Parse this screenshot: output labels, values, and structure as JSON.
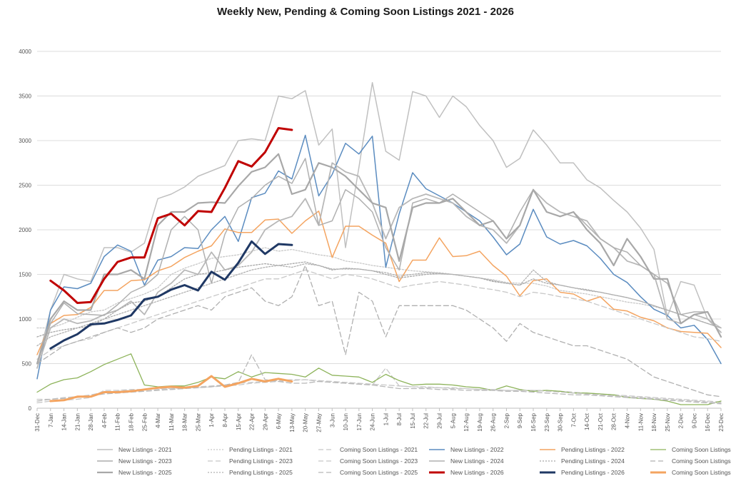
{
  "chart_data": {
    "type": "line",
    "title": "Weekly New, Pending & Coming Soon Listings 2021 - 2026",
    "xlabel": "",
    "ylabel": "",
    "ylim": [
      0,
      4000
    ],
    "yticks": [
      0,
      500,
      1000,
      1500,
      2000,
      2500,
      3000,
      3500,
      4000
    ],
    "grid": true,
    "legend_position": "bottom",
    "categories": [
      "31-Dec",
      "7-Jan",
      "14-Jan",
      "21-Jan",
      "28-Jan",
      "4-Feb",
      "11-Feb",
      "18-Feb",
      "25-Feb",
      "4-Mar",
      "11-Mar",
      "18-Mar",
      "25-Mar",
      "1-Apr",
      "8-Apr",
      "15-Apr",
      "22-Apr",
      "29-Apr",
      "6-May",
      "13-May",
      "20-May",
      "27-May",
      "3-Jun",
      "10-Jun",
      "17-Jun",
      "24-Jun",
      "1-Jul",
      "8-Jul",
      "15-Jul",
      "22-Jul",
      "29-Jul",
      "5-Aug",
      "12-Aug",
      "19-Aug",
      "26-Aug",
      "2-Sep",
      "9-Sep",
      "16-Sep",
      "23-Sep",
      "30-Sep",
      "7-Oct",
      "14-Oct",
      "21-Oct",
      "28-Oct",
      "4-Nov",
      "11-Nov",
      "18-Nov",
      "25-Nov",
      "2-Dec",
      "9-Dec",
      "16-Dec",
      "23-Dec"
    ],
    "series": [
      {
        "name": "New Listings - 2021",
        "color": "#c0c0c0",
        "dash": "solid",
        "width": 1.5,
        "values": [
          500,
          1100,
          1500,
          1450,
          1420,
          1800,
          1800,
          1750,
          1850,
          2350,
          2400,
          2480,
          2600,
          2660,
          2720,
          3000,
          3020,
          3000,
          3500,
          3470,
          3560,
          2950,
          3130,
          1800,
          2700,
          3650,
          2880,
          2780,
          3550,
          3500,
          3260,
          3500,
          3380,
          3170,
          3000,
          2700,
          2800,
          3120,
          2950,
          2750,
          2750,
          2560,
          2470,
          2330,
          2200,
          2020,
          1780,
          1030,
          1420,
          1380,
          1000,
          900
        ]
      },
      {
        "name": "Pending Listings - 2021",
        "color": "#c8c8c8",
        "dash": "2,2",
        "width": 1.3,
        "values": [
          900,
          900,
          950,
          1020,
          1080,
          1100,
          1180,
          1230,
          1280,
          1350,
          1500,
          1570,
          1620,
          1680,
          1700,
          1720,
          1760,
          1800,
          1760,
          1780,
          1750,
          1720,
          1700,
          1650,
          1630,
          1600,
          1580,
          1560,
          1540,
          1530,
          1520,
          1500,
          1480,
          1460,
          1440,
          1410,
          1400,
          1400,
          1370,
          1320,
          1300,
          1280,
          1250,
          1220,
          1190,
          1170,
          1140,
          1100,
          1050,
          1000,
          950,
          900
        ]
      },
      {
        "name": "Coming Soon Listings - 2021",
        "color": "#c8c8c8",
        "dash": "7,4",
        "width": 1.3,
        "values": [
          60,
          80,
          90,
          100,
          120,
          200,
          200,
          210,
          210,
          220,
          220,
          230,
          230,
          240,
          250,
          260,
          280,
          290,
          300,
          310,
          320,
          300,
          290,
          280,
          270,
          260,
          450,
          250,
          240,
          230,
          230,
          220,
          220,
          210,
          200,
          200,
          200,
          200,
          200,
          190,
          180,
          170,
          160,
          150,
          140,
          130,
          120,
          110,
          100,
          90,
          80,
          70
        ]
      },
      {
        "name": "New Listings - 2022",
        "color": "#5b8cc0",
        "dash": "solid",
        "width": 1.5,
        "values": [
          330,
          1100,
          1360,
          1340,
          1400,
          1700,
          1830,
          1760,
          1380,
          1660,
          1700,
          1800,
          1790,
          2000,
          2150,
          1870,
          2360,
          2410,
          2660,
          2570,
          3060,
          2380,
          2620,
          2970,
          2850,
          3050,
          1580,
          2180,
          2640,
          2460,
          2380,
          2300,
          2200,
          2100,
          1920,
          1720,
          1840,
          2230,
          1920,
          1840,
          1880,
          1820,
          1680,
          1500,
          1410,
          1250,
          1110,
          1040,
          900,
          930,
          770,
          500
        ]
      },
      {
        "name": "Pending Listings - 2022",
        "color": "#f4a460",
        "dash": "solid",
        "width": 1.5,
        "values": [
          600,
          950,
          1040,
          1050,
          1130,
          1320,
          1320,
          1430,
          1440,
          1540,
          1590,
          1690,
          1760,
          1820,
          2010,
          1970,
          1970,
          2110,
          2120,
          1960,
          2100,
          2210,
          1690,
          2040,
          2040,
          1940,
          1850,
          1420,
          1660,
          1660,
          1910,
          1700,
          1710,
          1760,
          1600,
          1480,
          1260,
          1430,
          1450,
          1300,
          1280,
          1200,
          1250,
          1110,
          1090,
          1020,
          980,
          900,
          860,
          850,
          840,
          680
        ]
      },
      {
        "name": "Coming Soon Listings - 2022",
        "color": "#8db35a",
        "dash": "solid",
        "width": 1.3,
        "values": [
          180,
          270,
          320,
          340,
          410,
          490,
          550,
          610,
          260,
          240,
          250,
          250,
          290,
          350,
          330,
          410,
          350,
          400,
          390,
          380,
          350,
          450,
          370,
          360,
          350,
          290,
          380,
          310,
          260,
          270,
          270,
          260,
          240,
          230,
          200,
          250,
          210,
          190,
          200,
          190,
          170,
          170,
          160,
          150,
          120,
          110,
          100,
          80,
          40,
          40,
          40,
          80
        ]
      },
      {
        "name": "New Listings - 2023",
        "color": "#b8b8b8",
        "dash": "solid",
        "width": 1.8,
        "values": [
          450,
          900,
          1000,
          950,
          980,
          1050,
          1100,
          1200,
          1050,
          1300,
          1400,
          1550,
          1500,
          1750,
          1550,
          1600,
          1750,
          2000,
          2100,
          2150,
          2350,
          2050,
          2750,
          2650,
          2600,
          2300,
          1900,
          2250,
          2350,
          2400,
          2350,
          2300,
          2150,
          2050,
          2000,
          1850,
          2050,
          2450,
          2300,
          2200,
          2150,
          2100,
          1900,
          1800,
          1650,
          1600,
          1500,
          1000,
          950,
          1050,
          1000,
          850
        ]
      },
      {
        "name": "Pending Listings - 2023",
        "color": "#c8c8c8",
        "dash": "7,4",
        "width": 1.3,
        "values": [
          550,
          650,
          700,
          750,
          780,
          850,
          900,
          950,
          1000,
          1050,
          1100,
          1150,
          1200,
          1250,
          1300,
          1350,
          1400,
          1450,
          1450,
          1500,
          1550,
          1500,
          1450,
          1500,
          1480,
          1450,
          1400,
          1350,
          1380,
          1400,
          1420,
          1400,
          1380,
          1350,
          1330,
          1300,
          1250,
          1300,
          1280,
          1250,
          1230,
          1200,
          1150,
          1100,
          1050,
          1000,
          950,
          900,
          850,
          800,
          780,
          750
        ]
      },
      {
        "name": "Coming Soon Listings - 2023",
        "color": "#c8c8c8",
        "dash": "7,4",
        "width": 1.3,
        "values": [
          100,
          100,
          120,
          130,
          150,
          180,
          190,
          200,
          190,
          210,
          220,
          230,
          240,
          250,
          260,
          280,
          290,
          300,
          310,
          320,
          320,
          310,
          300,
          290,
          280,
          270,
          260,
          250,
          240,
          240,
          230,
          230,
          220,
          210,
          210,
          200,
          200,
          200,
          190,
          180,
          170,
          160,
          150,
          140,
          130,
          120,
          110,
          100,
          90,
          80,
          70,
          60
        ]
      },
      {
        "name": "New Listings - 2024",
        "color": "#b0b0b0",
        "dash": "solid",
        "width": 1.5,
        "values": [
          500,
          950,
          1180,
          1060,
          1050,
          1040,
          1160,
          1300,
          1370,
          1500,
          2000,
          2150,
          2000,
          1400,
          1950,
          2250,
          2350,
          2500,
          2600,
          2520,
          2800,
          2050,
          2100,
          2450,
          2350,
          2200,
          1800,
          1550,
          2300,
          2350,
          2300,
          2400,
          2300,
          2200,
          2100,
          1900,
          2200,
          2450,
          2200,
          2150,
          2200,
          2050,
          1900,
          1800,
          1750,
          1600,
          1500,
          1400,
          1050,
          1080,
          1080,
          800
        ]
      },
      {
        "name": "Pending Listings - 2024",
        "color": "#a8a8a8",
        "dash": "2,2",
        "width": 1.3,
        "values": [
          800,
          850,
          880,
          900,
          920,
          1000,
          1100,
          1180,
          1200,
          1250,
          1350,
          1450,
          1500,
          1520,
          1550,
          1580,
          1600,
          1620,
          1600,
          1620,
          1640,
          1600,
          1550,
          1570,
          1560,
          1540,
          1500,
          1460,
          1480,
          1500,
          1510,
          1500,
          1480,
          1460,
          1420,
          1400,
          1380,
          1450,
          1400,
          1380,
          1350,
          1320,
          1300,
          1270,
          1240,
          1200,
          1150,
          1100,
          1050,
          1000,
          950,
          900
        ]
      },
      {
        "name": "Coming Soon Listings - 2024",
        "color": "#b0b0b0",
        "dash": "7,4",
        "width": 1.3,
        "values": [
          500,
          600,
          700,
          750,
          800,
          850,
          900,
          850,
          900,
          1000,
          1050,
          1100,
          1150,
          1100,
          1250,
          1300,
          1350,
          1200,
          1150,
          1250,
          1600,
          1150,
          1200,
          600,
          1300,
          1200,
          800,
          1150,
          1150,
          1150,
          1150,
          1150,
          1100,
          1000,
          900,
          750,
          950,
          850,
          800,
          750,
          700,
          700,
          650,
          600,
          550,
          450,
          350,
          300,
          250,
          200,
          150,
          130
        ]
      },
      {
        "name": "New Listings - 2025",
        "color": "#a8a8a8",
        "dash": "solid",
        "width": 2.2,
        "values": [
          500,
          1000,
          1200,
          1100,
          1100,
          1500,
          1500,
          1550,
          1450,
          2050,
          2200,
          2200,
          2300,
          2310,
          2300,
          2490,
          2650,
          2700,
          2850,
          2400,
          2450,
          2750,
          2700,
          2600,
          2450,
          2300,
          2250,
          1650,
          2250,
          2300,
          2300,
          2350,
          2200,
          2050,
          2100,
          1900,
          2050,
          2450,
          2200,
          2150,
          2200,
          2000,
          1850,
          1600,
          1900,
          1700,
          1450,
          1450,
          950,
          1050,
          1080,
          800
        ]
      },
      {
        "name": "Pending Listings - 2025",
        "color": "#b0b0b0",
        "dash": "2,2",
        "width": 1.3,
        "values": [
          700,
          800,
          850,
          900,
          950,
          1000,
          1050,
          1100,
          1150,
          1200,
          1250,
          1300,
          1350,
          1400,
          1450,
          1500,
          1550,
          1580,
          1600,
          1580,
          1620,
          1600,
          1560,
          1560,
          1560,
          1540,
          1520,
          1480,
          1500,
          1520,
          1510,
          1500,
          1480,
          1460,
          1430,
          1400,
          1380,
          1550,
          1420,
          1380,
          1350,
          1330,
          1300,
          1270,
          1240,
          1200,
          1150,
          1100,
          1050,
          1000,
          950,
          900
        ]
      },
      {
        "name": "Coming Soon Listings - 2025",
        "color": "#b8b8b8",
        "dash": "7,4",
        "width": 1.3,
        "values": [
          80,
          100,
          110,
          120,
          140,
          160,
          170,
          180,
          190,
          200,
          210,
          220,
          230,
          240,
          260,
          290,
          600,
          320,
          300,
          280,
          280,
          300,
          290,
          280,
          270,
          260,
          240,
          220,
          220,
          220,
          210,
          210,
          200,
          200,
          200,
          190,
          190,
          180,
          170,
          160,
          150,
          150,
          140,
          130,
          120,
          110,
          100,
          90,
          80,
          70,
          60,
          50
        ]
      },
      {
        "name": "New Listings - 2026",
        "color": "#c00000",
        "dash": "solid",
        "width": 3,
        "values": [
          null,
          1430,
          1320,
          1180,
          1190,
          1450,
          1640,
          1690,
          1690,
          2130,
          2180,
          2050,
          2210,
          2200,
          2470,
          2770,
          2710,
          2870,
          3140,
          3120,
          null,
          null,
          null,
          null,
          null,
          null,
          null,
          null,
          null,
          null,
          null,
          null,
          null,
          null,
          null,
          null,
          null,
          null,
          null,
          null,
          null,
          null,
          null,
          null,
          null,
          null,
          null,
          null,
          null,
          null,
          null,
          null
        ]
      },
      {
        "name": "Pending Listings - 2026",
        "color": "#1f3864",
        "dash": "solid",
        "width": 3,
        "values": [
          null,
          670,
          760,
          830,
          940,
          950,
          990,
          1040,
          1220,
          1250,
          1330,
          1380,
          1320,
          1530,
          1440,
          1630,
          1870,
          1730,
          1840,
          1830,
          null,
          null,
          null,
          null,
          null,
          null,
          null,
          null,
          null,
          null,
          null,
          null,
          null,
          null,
          null,
          null,
          null,
          null,
          null,
          null,
          null,
          null,
          null,
          null,
          null,
          null,
          null,
          null,
          null,
          null,
          null,
          null
        ]
      },
      {
        "name": "Coming Soon Listings - 2026",
        "color": "#f4a460",
        "dash": "solid",
        "width": 3,
        "values": [
          null,
          80,
          90,
          130,
          130,
          180,
          180,
          190,
          210,
          230,
          240,
          230,
          250,
          360,
          240,
          280,
          330,
          300,
          330,
          300,
          null,
          null,
          null,
          null,
          null,
          null,
          null,
          null,
          null,
          null,
          null,
          null,
          null,
          null,
          null,
          null,
          null,
          null,
          null,
          null,
          null,
          null,
          null,
          null,
          null,
          null,
          null,
          null,
          null,
          null,
          null,
          null
        ]
      }
    ]
  }
}
